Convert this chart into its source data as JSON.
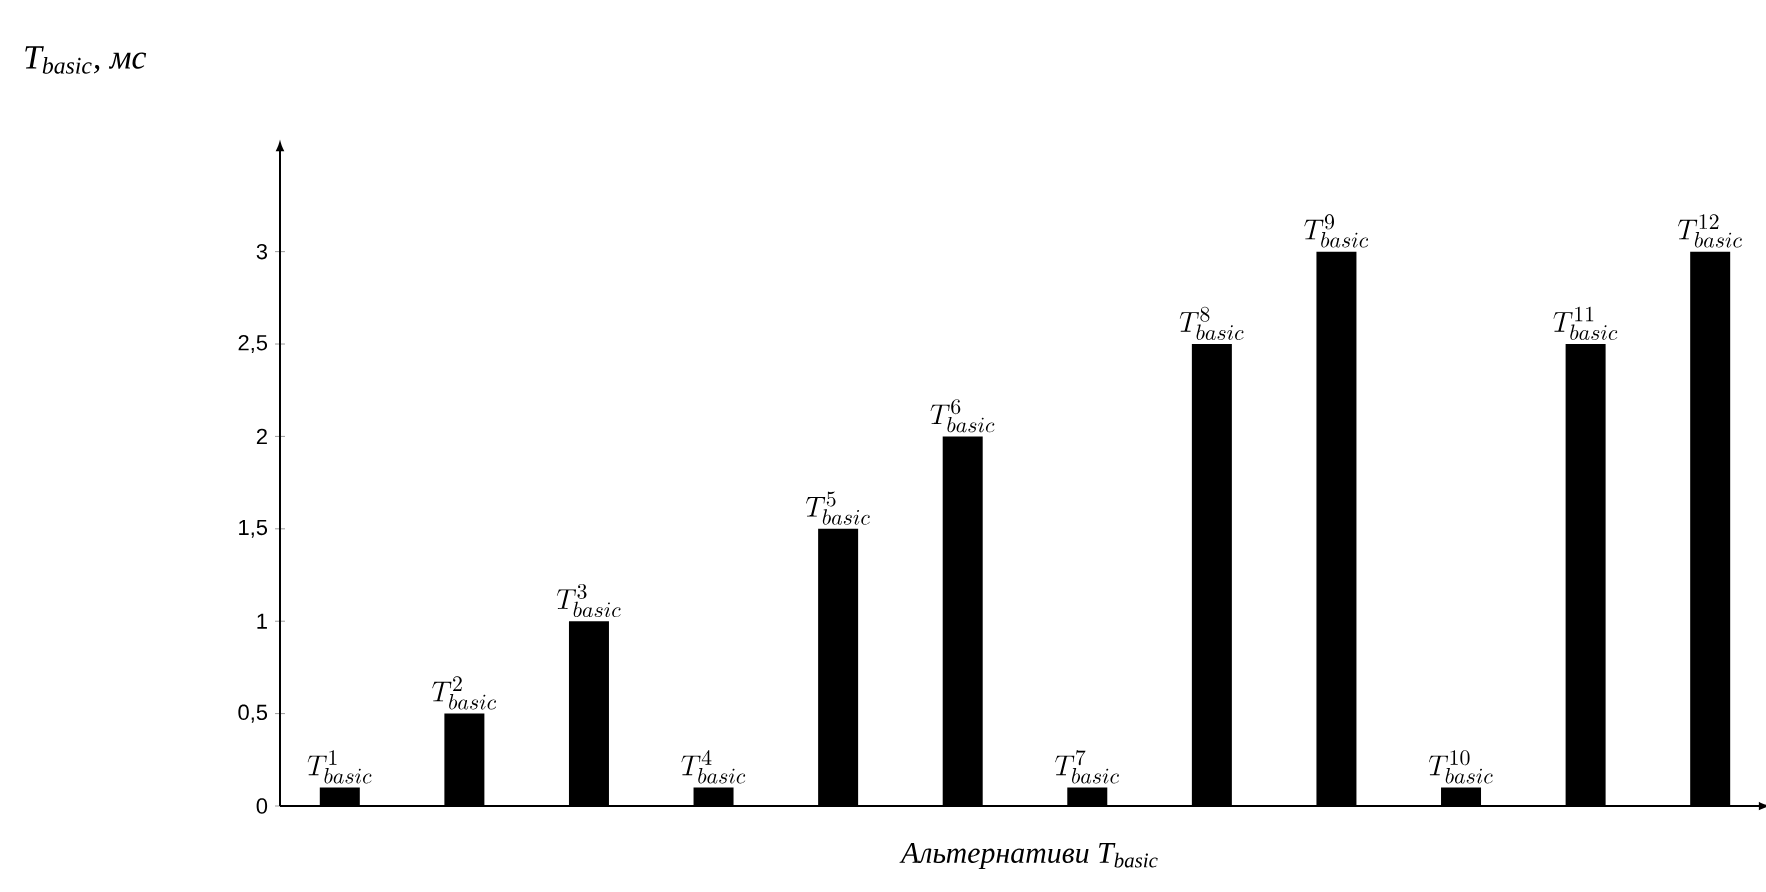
{
  "chart_data": {
    "type": "bar",
    "ylabel": "T$_{basic}$, мс",
    "xlabel": "Альтернативи T$_{basic}$",
    "categories": [
      "T^{1}_{basic}",
      "T^{2}_{basic}",
      "T^{3}_{basic}",
      "T^{4}_{basic}",
      "T^{5}_{basic}",
      "T^{6}_{basic}",
      "T^{7}_{basic}",
      "T^{8}_{basic}",
      "T^{9}_{basic}",
      "T^{10}_{basic}",
      "T^{11}_{basic}",
      "T^{12}_{basic}"
    ],
    "values": [
      0.1,
      0.5,
      1,
      0.1,
      1.5,
      2,
      0.1,
      2.5,
      3,
      0.1,
      2.5,
      3
    ],
    "color": "#000000",
    "ylim": [
      0,
      3.55
    ],
    "yticks": [
      0,
      {
        "value": 0.5,
        "label": "0,5"
      },
      1,
      {
        "value": 1.5,
        "label": "1,5"
      },
      2,
      {
        "value": 2.5,
        "label": "2,5"
      },
      3
    ],
    "grid": false
  }
}
